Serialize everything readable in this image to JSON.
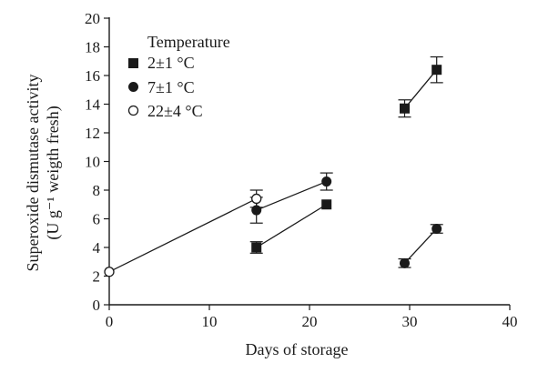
{
  "chart_data": {
    "type": "scatter",
    "xlabel": "Days of storage",
    "ylabel_line1": "Superoxide dismutase activity",
    "ylabel_line2": "(U g⁻¹ weigth fresh)",
    "xlim": [
      0,
      40
    ],
    "ylim": [
      0,
      20
    ],
    "xticks": [
      0,
      10,
      20,
      30,
      40
    ],
    "yticks": [
      0,
      2,
      4,
      6,
      8,
      10,
      12,
      14,
      16,
      18,
      20
    ],
    "grid": false,
    "legend": {
      "title": "Temperature",
      "position": "top-left"
    },
    "series": [
      {
        "name": "2±1 °C",
        "marker": "square-filled",
        "segments": [
          [
            {
              "x": 14.7,
              "y": 4.0,
              "err": 0.4
            },
            {
              "x": 21.7,
              "y": 7.0,
              "err": 0.0
            }
          ],
          [
            {
              "x": 29.5,
              "y": 13.7,
              "err": 0.6
            },
            {
              "x": 32.7,
              "y": 16.4,
              "err": 0.9
            }
          ]
        ]
      },
      {
        "name": "7±1 °C",
        "marker": "circle-filled",
        "segments": [
          [
            {
              "x": 14.7,
              "y": 6.6,
              "err": 0.9
            },
            {
              "x": 21.7,
              "y": 8.6,
              "err": 0.6
            }
          ],
          [
            {
              "x": 29.5,
              "y": 2.9,
              "err": 0.3
            },
            {
              "x": 32.7,
              "y": 5.3,
              "err": 0.3
            }
          ]
        ]
      },
      {
        "name": "22±4 °C",
        "marker": "circle-open",
        "segments": [
          [
            {
              "x": 0,
              "y": 2.3,
              "err": 0.0
            },
            {
              "x": 14.7,
              "y": 7.4,
              "err": 0.6
            }
          ]
        ]
      }
    ]
  }
}
